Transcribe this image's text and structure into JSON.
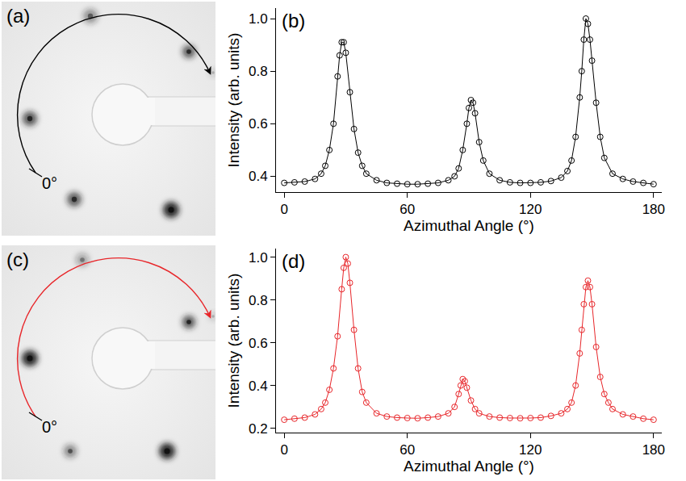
{
  "chart_data": [
    {
      "type": "line",
      "annotations": [
        "(b)"
      ],
      "x_label": "Azimuthal Angle (°)",
      "y_label": "Intensity (arb. units)",
      "x": [
        0,
        5,
        10,
        15,
        18,
        20,
        22,
        24,
        26,
        27,
        28,
        29,
        30,
        32,
        34,
        36,
        38,
        40,
        45,
        50,
        55,
        60,
        65,
        70,
        75,
        80,
        83,
        85,
        87,
        89,
        90,
        91,
        92,
        93,
        95,
        97,
        100,
        105,
        110,
        115,
        120,
        125,
        130,
        135,
        138,
        140,
        142,
        144,
        145,
        146,
        147,
        148,
        149,
        150,
        152,
        154,
        156,
        160,
        165,
        170,
        175,
        180
      ],
      "series": [
        {
          "color": "#000000",
          "marker": "circle-open",
          "line_style": "solid",
          "values": [
            0.375,
            0.377,
            0.38,
            0.39,
            0.41,
            0.44,
            0.5,
            0.6,
            0.78,
            0.86,
            0.91,
            0.91,
            0.87,
            0.72,
            0.58,
            0.49,
            0.44,
            0.41,
            0.385,
            0.375,
            0.372,
            0.37,
            0.37,
            0.372,
            0.375,
            0.385,
            0.4,
            0.43,
            0.5,
            0.6,
            0.66,
            0.69,
            0.68,
            0.64,
            0.53,
            0.46,
            0.41,
            0.385,
            0.377,
            0.375,
            0.375,
            0.377,
            0.382,
            0.395,
            0.42,
            0.46,
            0.55,
            0.7,
            0.8,
            0.92,
            1.0,
            0.98,
            0.92,
            0.84,
            0.68,
            0.55,
            0.47,
            0.41,
            0.39,
            0.38,
            0.375,
            0.37
          ]
        }
      ],
      "xlim": [
        -4,
        184
      ],
      "xticks": [
        0,
        60,
        120,
        180
      ],
      "ylim": [
        0.34,
        1.04
      ],
      "yticks": [
        0.4,
        0.6,
        0.8,
        {
          "value": 1,
          "label": "1.0"
        }
      ],
      "grid": false
    },
    {
      "type": "line",
      "annotations": [
        "(d)"
      ],
      "x_label": "Azimuthal Angle (°)",
      "y_label": "Intensity (arb. units)",
      "x": [
        0,
        5,
        10,
        15,
        18,
        20,
        22,
        24,
        26,
        28,
        29,
        30,
        31,
        32,
        34,
        36,
        38,
        40,
        45,
        50,
        55,
        60,
        65,
        70,
        75,
        80,
        83,
        85,
        86,
        87,
        88,
        89,
        91,
        93,
        95,
        100,
        105,
        110,
        115,
        120,
        125,
        130,
        135,
        138,
        140,
        142,
        144,
        145,
        146,
        147,
        148,
        149,
        150,
        152,
        154,
        156,
        158,
        160,
        165,
        170,
        175,
        180
      ],
      "series": [
        {
          "color": "#e8262a",
          "marker": "circle-open",
          "line_style": "solid",
          "values": [
            0.24,
            0.245,
            0.25,
            0.265,
            0.29,
            0.32,
            0.38,
            0.48,
            0.63,
            0.85,
            0.95,
            1.0,
            0.97,
            0.88,
            0.66,
            0.48,
            0.37,
            0.32,
            0.27,
            0.255,
            0.25,
            0.248,
            0.247,
            0.25,
            0.255,
            0.27,
            0.3,
            0.36,
            0.4,
            0.43,
            0.42,
            0.39,
            0.33,
            0.29,
            0.27,
            0.255,
            0.25,
            0.248,
            0.247,
            0.248,
            0.25,
            0.258,
            0.27,
            0.29,
            0.32,
            0.4,
            0.55,
            0.66,
            0.78,
            0.86,
            0.89,
            0.86,
            0.78,
            0.58,
            0.44,
            0.36,
            0.32,
            0.29,
            0.265,
            0.255,
            0.245,
            0.24
          ]
        }
      ],
      "xlim": [
        -4,
        184
      ],
      "xticks": [
        0,
        60,
        120,
        180
      ],
      "ylim": [
        0.18,
        1.04
      ],
      "yticks": [
        0.2,
        0.4,
        0.6,
        0.8,
        {
          "value": 1,
          "label": "1.0"
        }
      ],
      "grid": false
    }
  ],
  "images": [
    {
      "label": "(a)",
      "angle_label": "0°",
      "color": "#000000"
    },
    {
      "label": "(c)",
      "angle_label": "0°",
      "color": "#e8262a"
    }
  ]
}
